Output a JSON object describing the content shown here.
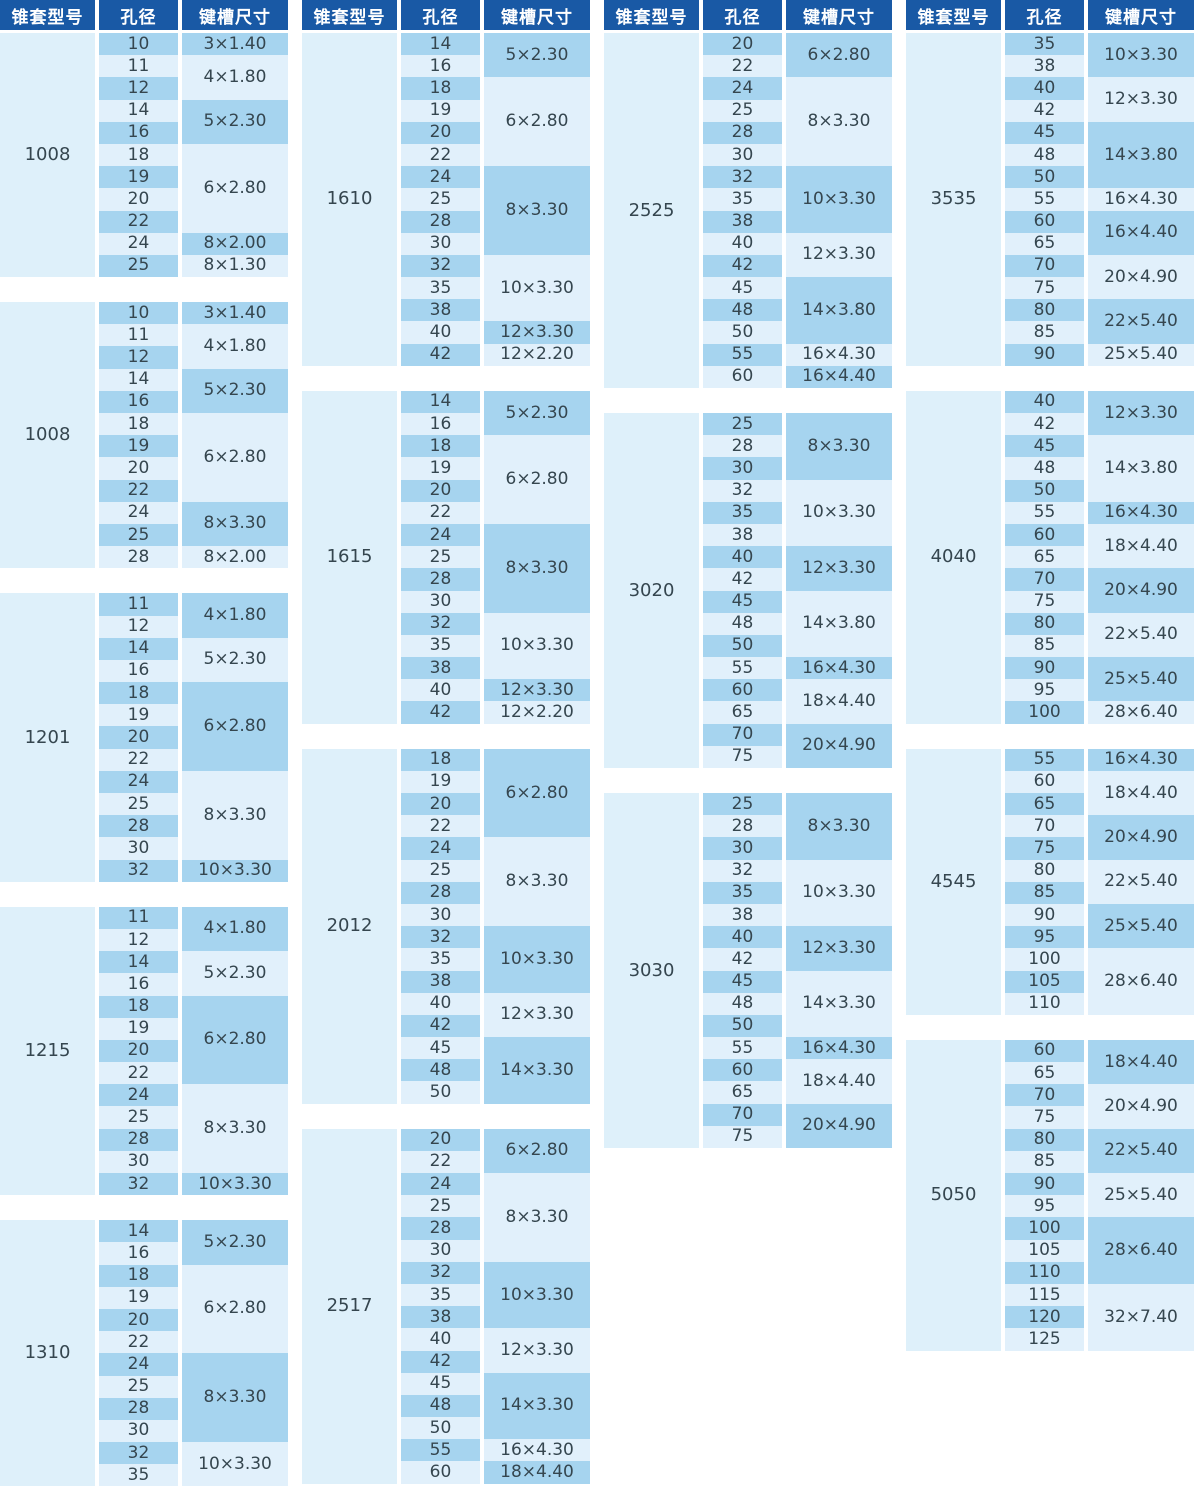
{
  "table_header": {
    "model_label": "锥套型号",
    "bore_label": "孔径",
    "keyway_label": "键槽尺寸"
  },
  "colors": {
    "header_bg": "#1959a5",
    "header_text": "#ffffff",
    "row_medium": "#a6d4ef",
    "row_light": "#e1f0fb",
    "model_bg": "#def0fa",
    "cell_text": "#35464f",
    "page_bg": "#ffffff"
  },
  "columns": [
    {
      "tables": [
        {
          "model": "1008",
          "groups": [
            {
              "keyway": "3×1.40",
              "bores": [
                "10"
              ]
            },
            {
              "keyway": "4×1.80",
              "bores": [
                "11",
                "12"
              ]
            },
            {
              "keyway": "5×2.30",
              "bores": [
                "14",
                "16"
              ]
            },
            {
              "keyway": "6×2.80",
              "bores": [
                "18",
                "19",
                "20",
                "22"
              ]
            },
            {
              "keyway": "8×2.00",
              "bores": [
                "24"
              ]
            },
            {
              "keyway": "8×1.30",
              "bores": [
                "25"
              ]
            }
          ]
        },
        {
          "model": "1008",
          "groups": [
            {
              "keyway": "3×1.40",
              "bores": [
                "10"
              ]
            },
            {
              "keyway": "4×1.80",
              "bores": [
                "11",
                "12"
              ]
            },
            {
              "keyway": "5×2.30",
              "bores": [
                "14",
                "16"
              ]
            },
            {
              "keyway": "6×2.80",
              "bores": [
                "18",
                "19",
                "20",
                "22"
              ]
            },
            {
              "keyway": "8×3.30",
              "bores": [
                "24",
                "25"
              ]
            },
            {
              "keyway": "8×2.00",
              "bores": [
                "28"
              ]
            }
          ]
        },
        {
          "model": "1201",
          "groups": [
            {
              "keyway": "4×1.80",
              "bores": [
                "11",
                "12"
              ]
            },
            {
              "keyway": "5×2.30",
              "bores": [
                "14",
                "16"
              ]
            },
            {
              "keyway": "6×2.80",
              "bores": [
                "18",
                "19",
                "20",
                "22"
              ]
            },
            {
              "keyway": "8×3.30",
              "bores": [
                "24",
                "25",
                "28",
                "30"
              ]
            },
            {
              "keyway": "10×3.30",
              "bores": [
                "32"
              ]
            }
          ]
        },
        {
          "model": "1215",
          "groups": [
            {
              "keyway": "4×1.80",
              "bores": [
                "11",
                "12"
              ]
            },
            {
              "keyway": "5×2.30",
              "bores": [
                "14",
                "16"
              ]
            },
            {
              "keyway": "6×2.80",
              "bores": [
                "18",
                "19",
                "20",
                "22"
              ]
            },
            {
              "keyway": "8×3.30",
              "bores": [
                "24",
                "25",
                "28",
                "30"
              ]
            },
            {
              "keyway": "10×3.30",
              "bores": [
                "32"
              ]
            }
          ]
        },
        {
          "model": "1310",
          "groups": [
            {
              "keyway": "5×2.30",
              "bores": [
                "14",
                "16"
              ]
            },
            {
              "keyway": "6×2.80",
              "bores": [
                "18",
                "19",
                "20",
                "22"
              ]
            },
            {
              "keyway": "8×3.30",
              "bores": [
                "24",
                "25",
                "28",
                "30"
              ]
            },
            {
              "keyway": "10×3.30",
              "bores": [
                "32",
                "35"
              ]
            }
          ]
        }
      ]
    },
    {
      "tables": [
        {
          "model": "1610",
          "groups": [
            {
              "keyway": "5×2.30",
              "bores": [
                "14",
                "16"
              ]
            },
            {
              "keyway": "6×2.80",
              "bores": [
                "18",
                "19",
                "20",
                "22"
              ]
            },
            {
              "keyway": "8×3.30",
              "bores": [
                "24",
                "25",
                "28",
                "30"
              ]
            },
            {
              "keyway": "10×3.30",
              "bores": [
                "32",
                "35",
                "38"
              ]
            },
            {
              "keyway": "12×3.30",
              "bores": [
                "40"
              ]
            },
            {
              "keyway": "12×2.20",
              "bores": [
                "42"
              ]
            }
          ]
        },
        {
          "model": "1615",
          "groups": [
            {
              "keyway": "5×2.30",
              "bores": [
                "14",
                "16"
              ]
            },
            {
              "keyway": "6×2.80",
              "bores": [
                "18",
                "19",
                "20",
                "22"
              ]
            },
            {
              "keyway": "8×3.30",
              "bores": [
                "24",
                "25",
                "28",
                "30"
              ]
            },
            {
              "keyway": "10×3.30",
              "bores": [
                "32",
                "35",
                "38"
              ]
            },
            {
              "keyway": "12×3.30",
              "bores": [
                "40"
              ]
            },
            {
              "keyway": "12×2.20",
              "bores": [
                "42"
              ]
            }
          ]
        },
        {
          "model": "2012",
          "groups": [
            {
              "keyway": "6×2.80",
              "bores": [
                "18",
                "19",
                "20",
                "22"
              ]
            },
            {
              "keyway": "8×3.30",
              "bores": [
                "24",
                "25",
                "28",
                "30"
              ]
            },
            {
              "keyway": "10×3.30",
              "bores": [
                "32",
                "35",
                "38"
              ]
            },
            {
              "keyway": "12×3.30",
              "bores": [
                "40",
                "42"
              ]
            },
            {
              "keyway": "14×3.30",
              "bores": [
                "45",
                "48",
                "50"
              ]
            }
          ]
        },
        {
          "model": "2517",
          "groups": [
            {
              "keyway": "6×2.80",
              "bores": [
                "20",
                "22"
              ]
            },
            {
              "keyway": "8×3.30",
              "bores": [
                "24",
                "25",
                "28",
                "30"
              ]
            },
            {
              "keyway": "10×3.30",
              "bores": [
                "32",
                "35",
                "38"
              ]
            },
            {
              "keyway": "12×3.30",
              "bores": [
                "40",
                "42"
              ]
            },
            {
              "keyway": "14×3.30",
              "bores": [
                "45",
                "48",
                "50"
              ]
            },
            {
              "keyway": "16×4.30",
              "bores": [
                "55"
              ]
            },
            {
              "keyway": "18×4.40",
              "bores": [
                "60"
              ]
            }
          ]
        }
      ]
    },
    {
      "tables": [
        {
          "model": "2525",
          "groups": [
            {
              "keyway": "6×2.80",
              "bores": [
                "20",
                "22"
              ]
            },
            {
              "keyway": "8×3.30",
              "bores": [
                "24",
                "25",
                "28",
                "30"
              ]
            },
            {
              "keyway": "10×3.30",
              "bores": [
                "32",
                "35",
                "38"
              ]
            },
            {
              "keyway": "12×3.30",
              "bores": [
                "40",
                "42"
              ]
            },
            {
              "keyway": "14×3.80",
              "bores": [
                "45",
                "48",
                "50"
              ]
            },
            {
              "keyway": "16×4.30",
              "bores": [
                "55"
              ]
            },
            {
              "keyway": "16×4.40",
              "bores": [
                "60"
              ]
            }
          ]
        },
        {
          "model": "3020",
          "groups": [
            {
              "keyway": "8×3.30",
              "bores": [
                "25",
                "28",
                "30"
              ]
            },
            {
              "keyway": "10×3.30",
              "bores": [
                "32",
                "35",
                "38"
              ]
            },
            {
              "keyway": "12×3.30",
              "bores": [
                "40",
                "42"
              ]
            },
            {
              "keyway": "14×3.80",
              "bores": [
                "45",
                "48",
                "50"
              ]
            },
            {
              "keyway": "16×4.30",
              "bores": [
                "55"
              ]
            },
            {
              "keyway": "18×4.40",
              "bores": [
                "60",
                "65"
              ]
            },
            {
              "keyway": "20×4.90",
              "bores": [
                "70",
                "75"
              ]
            }
          ]
        },
        {
          "model": "3030",
          "groups": [
            {
              "keyway": "8×3.30",
              "bores": [
                "25",
                "28",
                "30"
              ]
            },
            {
              "keyway": "10×3.30",
              "bores": [
                "32",
                "35",
                "38"
              ]
            },
            {
              "keyway": "12×3.30",
              "bores": [
                "40",
                "42"
              ]
            },
            {
              "keyway": "14×3.30",
              "bores": [
                "45",
                "48",
                "50"
              ]
            },
            {
              "keyway": "16×4.30",
              "bores": [
                "55"
              ]
            },
            {
              "keyway": "18×4.40",
              "bores": [
                "60",
                "65"
              ]
            },
            {
              "keyway": "20×4.90",
              "bores": [
                "70",
                "75"
              ]
            }
          ]
        }
      ]
    },
    {
      "tables": [
        {
          "model": "3535",
          "groups": [
            {
              "keyway": "10×3.30",
              "bores": [
                "35",
                "38"
              ]
            },
            {
              "keyway": "12×3.30",
              "bores": [
                "40",
                "42"
              ]
            },
            {
              "keyway": "14×3.80",
              "bores": [
                "45",
                "48",
                "50"
              ]
            },
            {
              "keyway": "16×4.30",
              "bores": [
                "55"
              ]
            },
            {
              "keyway": "16×4.40",
              "bores": [
                "60",
                "65"
              ]
            },
            {
              "keyway": "20×4.90",
              "bores": [
                "70",
                "75"
              ]
            },
            {
              "keyway": "22×5.40",
              "bores": [
                "80",
                "85"
              ]
            },
            {
              "keyway": "25×5.40",
              "bores": [
                "90"
              ]
            }
          ]
        },
        {
          "model": "4040",
          "groups": [
            {
              "keyway": "12×3.30",
              "bores": [
                "40",
                "42"
              ]
            },
            {
              "keyway": "14×3.80",
              "bores": [
                "45",
                "48",
                "50"
              ]
            },
            {
              "keyway": "16×4.30",
              "bores": [
                "55"
              ]
            },
            {
              "keyway": "18×4.40",
              "bores": [
                "60",
                "65"
              ]
            },
            {
              "keyway": "20×4.90",
              "bores": [
                "70",
                "75"
              ]
            },
            {
              "keyway": "22×5.40",
              "bores": [
                "80",
                "85"
              ]
            },
            {
              "keyway": "25×5.40",
              "bores": [
                "90",
                "95"
              ]
            },
            {
              "keyway": "28×6.40",
              "bores": [
                "100"
              ]
            }
          ]
        },
        {
          "model": "4545",
          "groups": [
            {
              "keyway": "16×4.30",
              "bores": [
                "55"
              ]
            },
            {
              "keyway": "18×4.40",
              "bores": [
                "60",
                "65"
              ]
            },
            {
              "keyway": "20×4.90",
              "bores": [
                "70",
                "75"
              ]
            },
            {
              "keyway": "22×5.40",
              "bores": [
                "80",
                "85"
              ]
            },
            {
              "keyway": "25×5.40",
              "bores": [
                "90",
                "95"
              ]
            },
            {
              "keyway": "28×6.40",
              "bores": [
                "100",
                "105",
                "110"
              ]
            }
          ]
        },
        {
          "model": "5050",
          "groups": [
            {
              "keyway": "18×4.40",
              "bores": [
                "60",
                "65"
              ]
            },
            {
              "keyway": "20×4.90",
              "bores": [
                "70",
                "75"
              ]
            },
            {
              "keyway": "22×5.40",
              "bores": [
                "80",
                "85"
              ]
            },
            {
              "keyway": "25×5.40",
              "bores": [
                "90",
                "95"
              ]
            },
            {
              "keyway": "28×6.40",
              "bores": [
                "100",
                "105",
                "110"
              ]
            },
            {
              "keyway": "32×7.40",
              "bores": [
                "115",
                "120",
                "125"
              ]
            }
          ]
        }
      ]
    }
  ]
}
